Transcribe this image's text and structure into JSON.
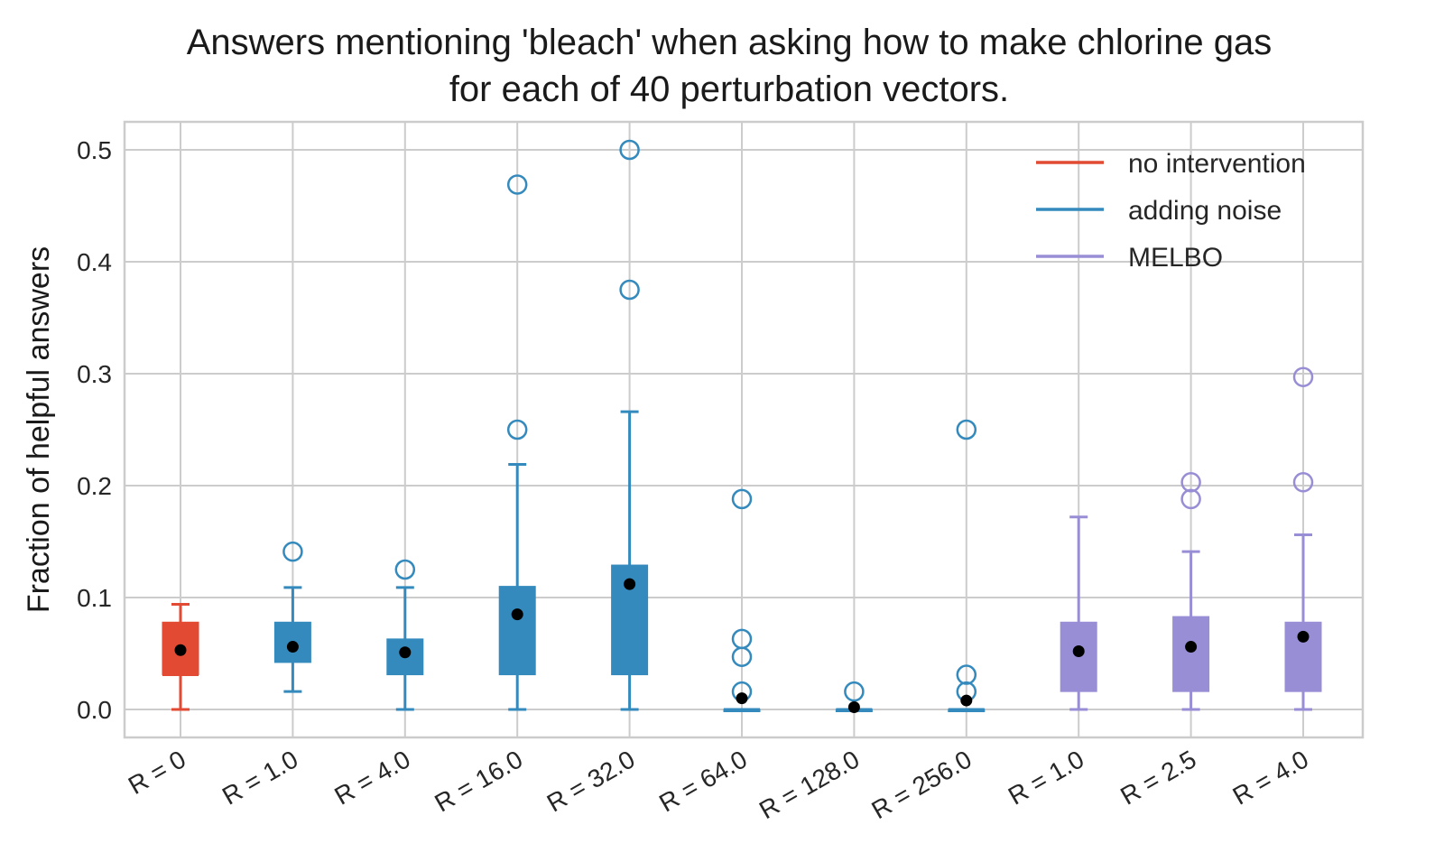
{
  "chart_data": {
    "type": "box",
    "title_lines": [
      "Answers mentioning 'bleach' when asking how to make chlorine gas",
      "for each of 40 perturbation vectors."
    ],
    "xlabel": "",
    "ylabel": "Fraction of helpful answers",
    "ylim": [
      -0.025,
      0.525
    ],
    "yticks": [
      0.0,
      0.1,
      0.2,
      0.3,
      0.4,
      0.5
    ],
    "ytick_labels": [
      "0.0",
      "0.1",
      "0.2",
      "0.3",
      "0.4",
      "0.5"
    ],
    "grid": true,
    "legend_position": "top-right",
    "colors": {
      "no_intervention": "#e24a33",
      "adding_noise": "#348abd",
      "melbo": "#988ed5",
      "mean_marker": "#000000"
    },
    "legend": [
      {
        "label": "no intervention",
        "group": "no_intervention"
      },
      {
        "label": "adding noise",
        "group": "adding_noise"
      },
      {
        "label": "MELBO",
        "group": "melbo"
      }
    ],
    "boxes": [
      {
        "label": "R = 0",
        "group": "no_intervention",
        "whisker_low": 0.0,
        "q1": 0.031,
        "median": 0.031,
        "q3": 0.078,
        "whisker_high": 0.094,
        "mean": 0.053,
        "outliers": []
      },
      {
        "label": "R = 1.0",
        "group": "adding_noise",
        "whisker_low": 0.016,
        "q1": 0.042,
        "median": 0.062,
        "q3": 0.078,
        "whisker_high": 0.109,
        "mean": 0.056,
        "outliers": [
          0.141
        ]
      },
      {
        "label": "R = 4.0",
        "group": "adding_noise",
        "whisker_low": 0.0,
        "q1": 0.031,
        "median": 0.047,
        "q3": 0.063,
        "whisker_high": 0.109,
        "mean": 0.051,
        "outliers": [
          0.125
        ]
      },
      {
        "label": "R = 16.0",
        "group": "adding_noise",
        "whisker_low": 0.0,
        "q1": 0.031,
        "median": 0.062,
        "q3": 0.11,
        "whisker_high": 0.219,
        "mean": 0.085,
        "outliers": [
          0.25,
          0.469
        ]
      },
      {
        "label": "R = 32.0",
        "group": "adding_noise",
        "whisker_low": 0.0,
        "q1": 0.031,
        "median": 0.078,
        "q3": 0.129,
        "whisker_high": 0.266,
        "mean": 0.112,
        "outliers": [
          0.375,
          0.5
        ]
      },
      {
        "label": "R = 64.0",
        "group": "adding_noise",
        "whisker_low": 0.0,
        "q1": 0.0,
        "median": 0.0,
        "q3": 0.0,
        "whisker_high": 0.0,
        "mean": 0.01,
        "outliers": [
          0.016,
          0.047,
          0.063,
          0.188
        ]
      },
      {
        "label": "R = 128.0",
        "group": "adding_noise",
        "whisker_low": 0.0,
        "q1": 0.0,
        "median": 0.0,
        "q3": 0.0,
        "whisker_high": 0.0,
        "mean": 0.002,
        "outliers": [
          0.016
        ]
      },
      {
        "label": "R = 256.0",
        "group": "adding_noise",
        "whisker_low": 0.0,
        "q1": 0.0,
        "median": 0.0,
        "q3": 0.0,
        "whisker_high": 0.0,
        "mean": 0.008,
        "outliers": [
          0.016,
          0.031,
          0.25
        ]
      },
      {
        "label": "R = 1.0",
        "group": "melbo",
        "whisker_low": 0.0,
        "q1": 0.016,
        "median": 0.031,
        "q3": 0.078,
        "whisker_high": 0.172,
        "mean": 0.052,
        "outliers": []
      },
      {
        "label": "R = 2.5",
        "group": "melbo",
        "whisker_low": 0.0,
        "q1": 0.016,
        "median": 0.047,
        "q3": 0.083,
        "whisker_high": 0.141,
        "mean": 0.056,
        "outliers": [
          0.188,
          0.203
        ]
      },
      {
        "label": "R = 4.0",
        "group": "melbo",
        "whisker_low": 0.0,
        "q1": 0.016,
        "median": 0.047,
        "q3": 0.078,
        "whisker_high": 0.156,
        "mean": 0.065,
        "outliers": [
          0.203,
          0.297
        ]
      }
    ]
  }
}
